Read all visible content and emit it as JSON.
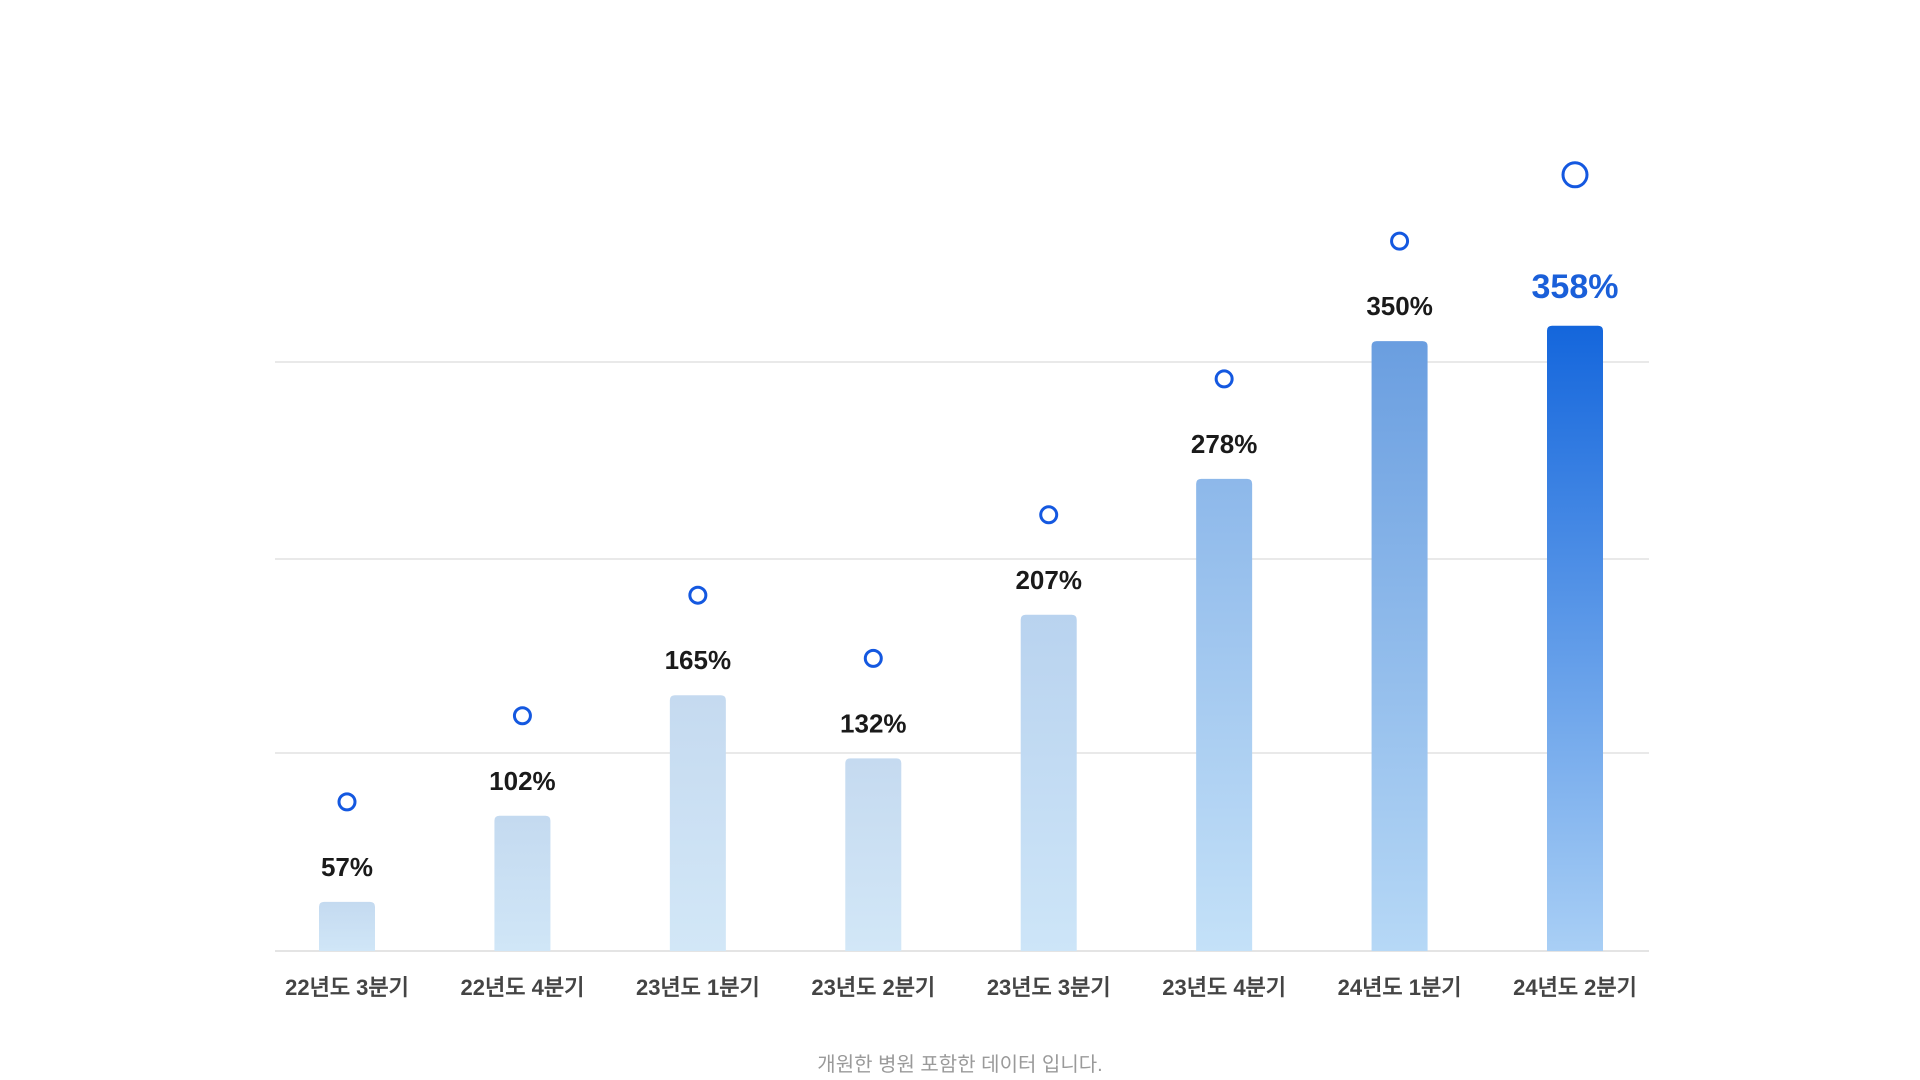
{
  "chart_data": {
    "type": "bar",
    "title": "",
    "xlabel": "",
    "ylabel": "",
    "categories": [
      "22년도 3분기",
      "22년도 4분기",
      "23년도 1분기",
      "23년도 2분기",
      "23년도 3분기",
      "23년도 4분기",
      "24년도 1분기",
      "24년도 2분기"
    ],
    "values": [
      57,
      102,
      165,
      132,
      207,
      278,
      350,
      358
    ],
    "value_labels": [
      "57%",
      "102%",
      "165%",
      "132%",
      "207%",
      "278%",
      "350%",
      "358%"
    ],
    "highlight_index": 7,
    "grid": true,
    "legend": "none",
    "markers": "circle above each bar",
    "colors": {
      "highlight": "#1466dc",
      "label": "#1a1a1a",
      "highlight_label": "#1a5fd9",
      "marker": "#1458e0",
      "grid": "#e2e2e2"
    }
  },
  "footnote": "개원한 병원 포함한 데이터 입니다."
}
